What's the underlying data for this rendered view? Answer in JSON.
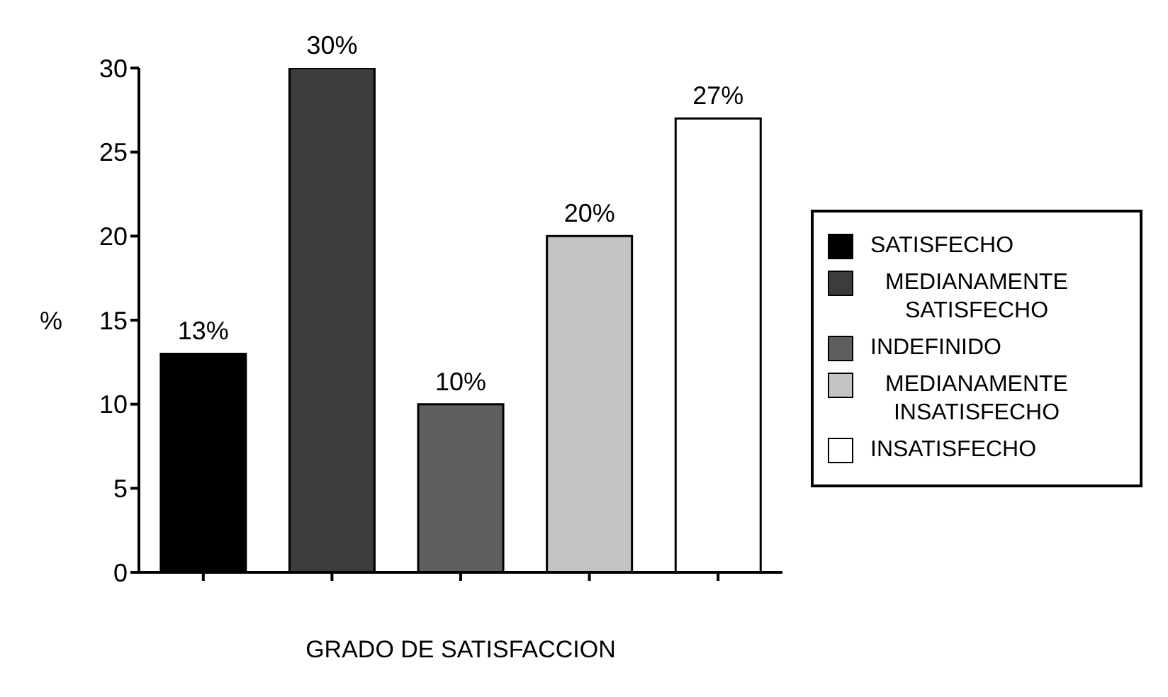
{
  "chart_data": {
    "type": "bar",
    "xlabel": "GRADO DE SATISFACCION",
    "ylabel": "%",
    "categories": [
      null,
      null,
      null,
      null,
      null
    ],
    "series": [
      {
        "name": "SATISFECHO",
        "color": "#000000",
        "values": [
          13,
          null,
          null,
          null,
          null
        ],
        "value_labels": [
          "13%",
          null,
          null,
          null,
          null
        ]
      },
      {
        "name": "MEDIANAMENTE SATISFECHO",
        "color": "#3c3c3c",
        "values": [
          null,
          30,
          null,
          null,
          null
        ],
        "value_labels": [
          null,
          "30%",
          null,
          null,
          null
        ]
      },
      {
        "name": "INDEFINIDO",
        "color": "#5e5e5e",
        "values": [
          null,
          null,
          10,
          null,
          null
        ],
        "value_labels": [
          null,
          null,
          "10%",
          null,
          null
        ]
      },
      {
        "name": "MEDIANAMENTE INSATISFECHO",
        "color": "#c4c4c4",
        "values": [
          null,
          null,
          null,
          20,
          null
        ],
        "value_labels": [
          null,
          null,
          null,
          "20%",
          null
        ]
      },
      {
        "name": "INSATISFECHO",
        "color": "#ffffff",
        "values": [
          null,
          null,
          null,
          null,
          27
        ],
        "value_labels": [
          null,
          null,
          null,
          null,
          "27%"
        ]
      }
    ],
    "ylim": [
      0,
      30
    ],
    "yticks": [
      0,
      5,
      10,
      15,
      20,
      25,
      30
    ],
    "grid": false,
    "legend": "right"
  }
}
